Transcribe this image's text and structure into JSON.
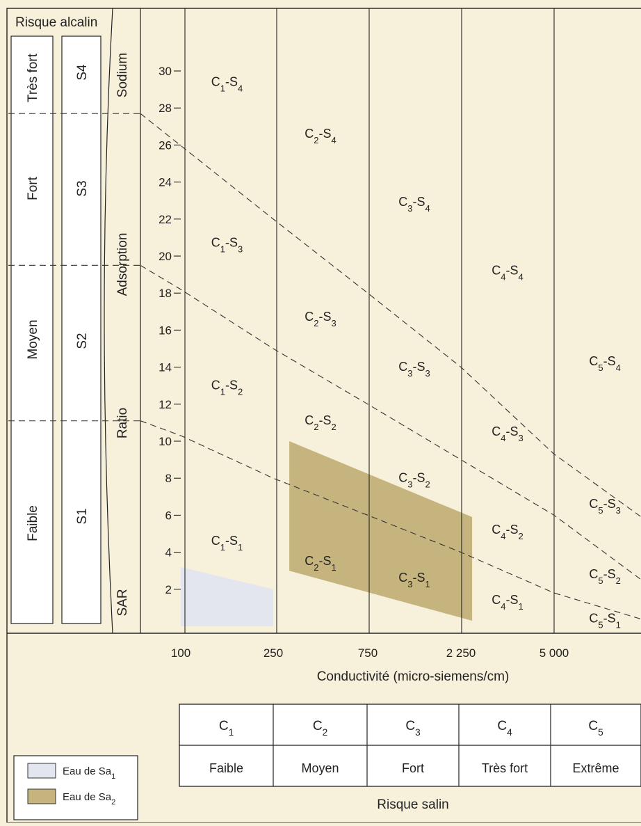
{
  "chart_data": {
    "type": "diagram",
    "title": "",
    "left_header": "Risque alcalin",
    "alkali_risk_levels": [
      "Très fort",
      "Fort",
      "Moyen",
      "Faible"
    ],
    "sodium_classes": [
      "S4",
      "S3",
      "S2",
      "S1"
    ],
    "ylabel_words": [
      "Sodium",
      "Adsorption",
      "Ratio",
      "SAR"
    ],
    "y_ticks": [
      2,
      4,
      6,
      8,
      10,
      12,
      14,
      16,
      18,
      20,
      22,
      24,
      26,
      28,
      30
    ],
    "ylim": [
      0,
      34
    ],
    "x_ticks": [
      "100",
      "250",
      "750",
      "2 250",
      "5 000"
    ],
    "xlabel": "Conductivité (micro-siemens/cm)",
    "zones": [
      {
        "c": "1",
        "s": "4",
        "cx": 0.5,
        "y": 29.2
      },
      {
        "c": "2",
        "s": "4",
        "cx": 1.5,
        "y": 26.4
      },
      {
        "c": "3",
        "s": "4",
        "cx": 2.5,
        "y": 22.7
      },
      {
        "c": "4",
        "s": "4",
        "cx": 3.5,
        "y": 19.0
      },
      {
        "c": "5",
        "s": "4",
        "cx": 4.55,
        "y": 14.1
      },
      {
        "c": "1",
        "s": "3",
        "cx": 0.5,
        "y": 20.5
      },
      {
        "c": "2",
        "s": "3",
        "cx": 1.5,
        "y": 16.5
      },
      {
        "c": "3",
        "s": "3",
        "cx": 2.5,
        "y": 13.8
      },
      {
        "c": "4",
        "s": "3",
        "cx": 3.5,
        "y": 10.3
      },
      {
        "c": "5",
        "s": "3",
        "cx": 4.55,
        "y": 6.4
      },
      {
        "c": "1",
        "s": "2",
        "cx": 0.5,
        "y": 12.8
      },
      {
        "c": "2",
        "s": "2",
        "cx": 1.5,
        "y": 10.9
      },
      {
        "c": "3",
        "s": "2",
        "cx": 2.5,
        "y": 7.8
      },
      {
        "c": "4",
        "s": "2",
        "cx": 3.5,
        "y": 5.0
      },
      {
        "c": "5",
        "s": "2",
        "cx": 4.55,
        "y": 2.6
      },
      {
        "c": "1",
        "s": "1",
        "cx": 0.5,
        "y": 4.4
      },
      {
        "c": "2",
        "s": "1",
        "cx": 1.5,
        "y": 3.3
      },
      {
        "c": "3",
        "s": "1",
        "cx": 2.5,
        "y": 2.4
      },
      {
        "c": "4",
        "s": "1",
        "cx": 3.5,
        "y": 1.2
      },
      {
        "c": "5",
        "s": "1",
        "cx": 4.55,
        "y": 0.2
      }
    ],
    "boundaries": [
      {
        "points": [
          [
            -0.4,
            27.7
          ],
          [
            1.0,
            22.0
          ],
          [
            2.0,
            18.0
          ],
          [
            3.0,
            14.0
          ],
          [
            4.0,
            9.3
          ],
          [
            5.0,
            5.7
          ],
          [
            5.3,
            4.6
          ]
        ]
      },
      {
        "points": [
          [
            -0.4,
            19.5
          ],
          [
            0.0,
            18.2
          ],
          [
            1.0,
            15.0
          ],
          [
            2.0,
            12.0
          ],
          [
            3.0,
            9.0
          ],
          [
            4.0,
            6.0
          ],
          [
            5.0,
            2.3
          ],
          [
            5.3,
            1.5
          ]
        ]
      },
      {
        "points": [
          [
            -0.4,
            11.1
          ],
          [
            0.0,
            10.3
          ],
          [
            1.0,
            8.0
          ],
          [
            2.0,
            6.0
          ],
          [
            3.0,
            4.0
          ],
          [
            4.0,
            1.8
          ],
          [
            5.0,
            0.3
          ],
          [
            5.3,
            0.0
          ]
        ]
      }
    ],
    "regions": [
      {
        "name": "Sa1",
        "color": "#e4e6ef",
        "points": [
          [
            0.0,
            0.0
          ],
          [
            0.0,
            3.2
          ],
          [
            1.0,
            2.0
          ],
          [
            1.0,
            0.0
          ]
        ]
      },
      {
        "name": "Sa2",
        "color": "#c6b47e",
        "points": [
          [
            1.17,
            10.0
          ],
          [
            3.12,
            5.9
          ],
          [
            3.12,
            0.3
          ],
          [
            1.17,
            3.0
          ]
        ]
      }
    ],
    "salinity_table": {
      "classes": [
        {
          "code": "C",
          "sub": "1",
          "risk": "Faible"
        },
        {
          "code": "C",
          "sub": "2",
          "risk": "Moyen"
        },
        {
          "code": "C",
          "sub": "3",
          "risk": "Fort"
        },
        {
          "code": "C",
          "sub": "4",
          "risk": "Très fort"
        },
        {
          "code": "C",
          "sub": "5",
          "risk": "Extrême"
        }
      ],
      "caption": "Risque salin"
    },
    "legend": [
      {
        "label": "Eau de Sa",
        "sub": "1",
        "color": "#e4e6ef"
      },
      {
        "label": "Eau de Sa",
        "sub": "2",
        "color": "#c6b47e"
      }
    ]
  }
}
